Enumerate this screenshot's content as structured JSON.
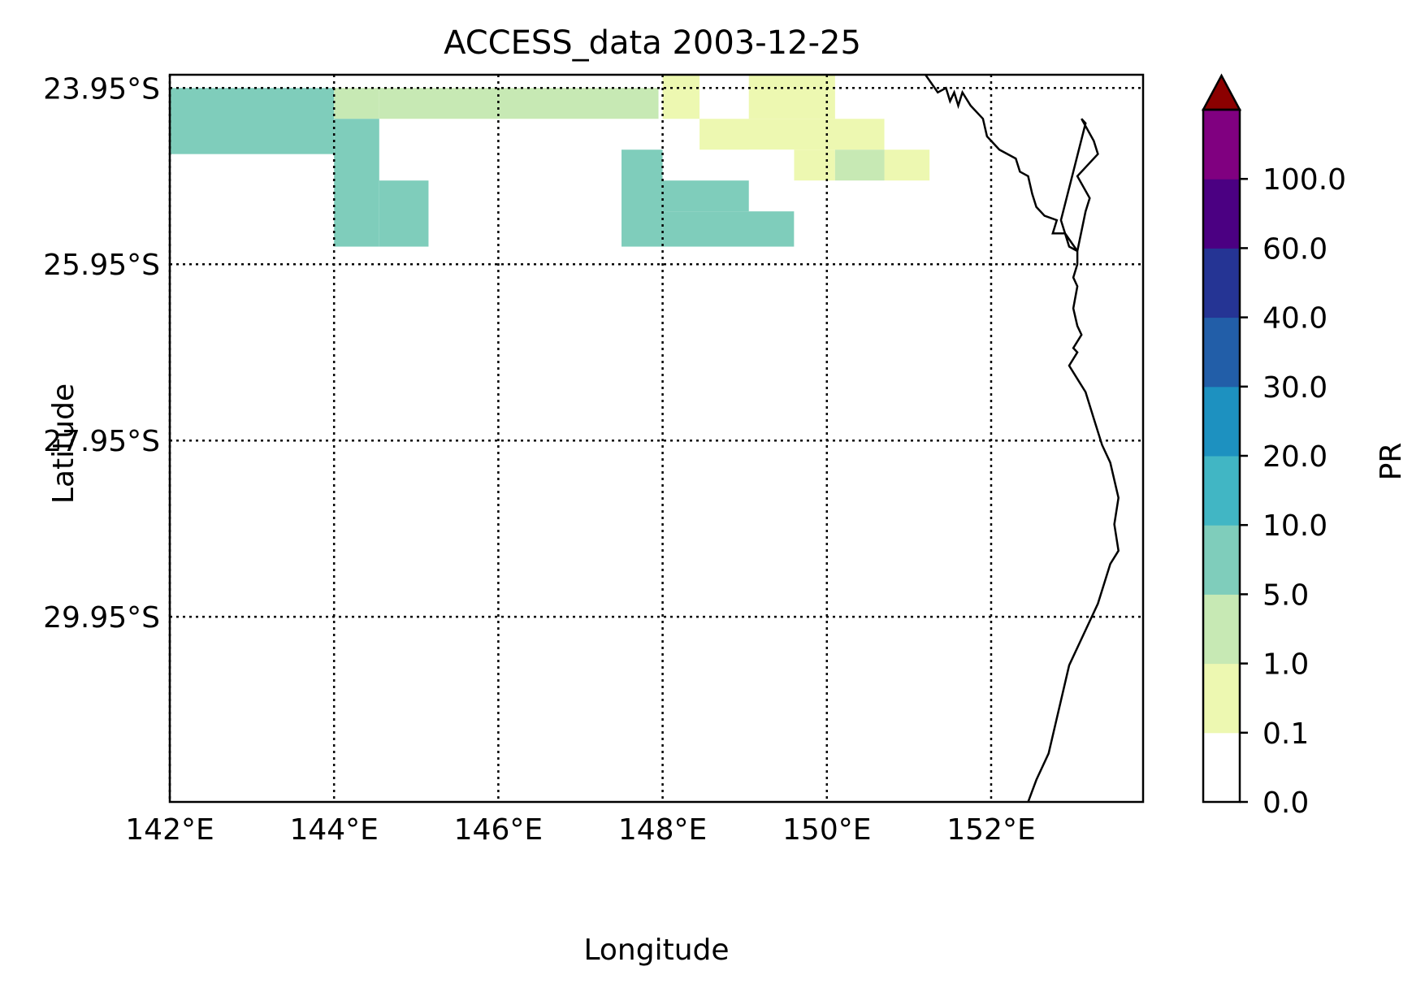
{
  "figure": {
    "title": "ACCESS_data 2003-12-25",
    "xlabel": "Longitude",
    "ylabel": "Latitude"
  },
  "map": {
    "lon_range": [
      142.0,
      153.85
    ],
    "lat_range": [
      -32.05,
      -23.8
    ],
    "lon_tick_labels": [
      "142°E",
      "144°E",
      "146°E",
      "148°E",
      "150°E",
      "152°E"
    ],
    "lon_ticks": [
      142,
      144,
      146,
      148,
      150,
      152
    ],
    "lat_tick_labels": [
      "23.95°S",
      "25.95°S",
      "27.95°S",
      "29.95°S"
    ],
    "lat_ticks": [
      -23.95,
      -25.95,
      -27.95,
      -29.95
    ],
    "gridlines": "dotted",
    "coastline": [
      [
        151.2,
        -23.8
      ],
      [
        151.35,
        -24.0
      ],
      [
        151.45,
        -23.95
      ],
      [
        151.5,
        -24.1
      ],
      [
        151.55,
        -24.0
      ],
      [
        151.6,
        -24.15
      ],
      [
        151.65,
        -24.0
      ],
      [
        151.75,
        -24.15
      ],
      [
        151.9,
        -24.3
      ],
      [
        151.95,
        -24.5
      ],
      [
        152.1,
        -24.65
      ],
      [
        152.3,
        -24.75
      ],
      [
        152.35,
        -24.9
      ],
      [
        152.45,
        -24.95
      ],
      [
        152.5,
        -25.15
      ],
      [
        152.55,
        -25.3
      ],
      [
        152.65,
        -25.4
      ],
      [
        152.8,
        -25.45
      ],
      [
        152.75,
        -25.6
      ],
      [
        152.9,
        -25.6
      ],
      [
        153.05,
        -25.8
      ],
      [
        153.15,
        -25.35
      ],
      [
        153.2,
        -25.2
      ],
      [
        153.05,
        -24.95
      ],
      [
        153.3,
        -24.7
      ],
      [
        153.25,
        -24.55
      ],
      [
        153.1,
        -24.3
      ],
      [
        153.15,
        -24.35
      ],
      [
        153.0,
        -24.9
      ],
      [
        152.85,
        -25.45
      ],
      [
        152.95,
        -25.75
      ],
      [
        153.05,
        -25.8
      ],
      [
        153.05,
        -25.95
      ],
      [
        153.0,
        -26.1
      ],
      [
        153.05,
        -26.2
      ],
      [
        153.0,
        -26.45
      ],
      [
        153.05,
        -26.65
      ],
      [
        153.1,
        -26.75
      ],
      [
        153.0,
        -26.9
      ],
      [
        153.05,
        -26.95
      ],
      [
        152.95,
        -27.1
      ],
      [
        153.05,
        -27.25
      ],
      [
        153.15,
        -27.4
      ],
      [
        153.25,
        -27.7
      ],
      [
        153.35,
        -28.0
      ],
      [
        153.45,
        -28.2
      ],
      [
        153.55,
        -28.6
      ],
      [
        153.5,
        -28.9
      ],
      [
        153.55,
        -29.2
      ],
      [
        153.45,
        -29.35
      ],
      [
        153.3,
        -29.8
      ],
      [
        153.2,
        -30.0
      ],
      [
        152.95,
        -30.5
      ],
      [
        152.85,
        -30.9
      ],
      [
        152.7,
        -31.5
      ],
      [
        152.55,
        -31.8
      ],
      [
        152.45,
        -32.05
      ]
    ]
  },
  "chart_data": {
    "type": "heatmap",
    "title": "ACCESS_data 2003-12-25",
    "xlabel": "Longitude",
    "ylabel": "Latitude",
    "colorbar_label": "PR",
    "xlim": [
      142.0,
      153.85
    ],
    "ylim": [
      -32.05,
      -23.8
    ],
    "cell_size_deg": [
      0.55,
      0.36
    ],
    "class_colors": [
      "#ffffff",
      "#edf8b1",
      "#c7e9b4",
      "#7fcdbb",
      "#41b6c4",
      "#1d91c0",
      "#225ea8",
      "#253494",
      "#4b0082",
      "#800080",
      "#8b0000"
    ],
    "cells": [
      {
        "lon": [
          142.0,
          144.0
        ],
        "lat": [
          -23.95,
          -24.7
        ],
        "cls": 3
      },
      {
        "lon": [
          144.0,
          144.55
        ],
        "lat": [
          -23.95,
          -24.3
        ],
        "cls": 2
      },
      {
        "lon": [
          144.55,
          147.95
        ],
        "lat": [
          -23.95,
          -24.3
        ],
        "cls": 2
      },
      {
        "lon": [
          148.0,
          148.45
        ],
        "lat": [
          -23.8,
          -24.3
        ],
        "cls": 1
      },
      {
        "lon": [
          148.45,
          149.05
        ],
        "lat": [
          -23.8,
          -24.3
        ],
        "cls": 0
      },
      {
        "lon": [
          149.05,
          150.1
        ],
        "lat": [
          -23.8,
          -24.3
        ],
        "cls": 1
      },
      {
        "lon": [
          148.45,
          150.7
        ],
        "lat": [
          -24.3,
          -24.65
        ],
        "cls": 1
      },
      {
        "lon": [
          149.6,
          150.1
        ],
        "lat": [
          -24.65,
          -25.0
        ],
        "cls": 1
      },
      {
        "lon": [
          150.7,
          151.25
        ],
        "lat": [
          -24.65,
          -25.0
        ],
        "cls": 1
      },
      {
        "lon": [
          150.1,
          150.7
        ],
        "lat": [
          -24.65,
          -25.0
        ],
        "cls": 2
      },
      {
        "lon": [
          149.05,
          149.6
        ],
        "lat": [
          -24.65,
          -25.0
        ],
        "cls": 0
      },
      {
        "lon": [
          144.0,
          144.55
        ],
        "lat": [
          -24.3,
          -25.75
        ],
        "cls": 3
      },
      {
        "lon": [
          144.55,
          145.15
        ],
        "lat": [
          -25.0,
          -25.75
        ],
        "cls": 3
      },
      {
        "lon": [
          147.5,
          148.0
        ],
        "lat": [
          -24.65,
          -25.75
        ],
        "cls": 3
      },
      {
        "lon": [
          148.0,
          149.05
        ],
        "lat": [
          -25.0,
          -25.35
        ],
        "cls": 3
      },
      {
        "lon": [
          148.0,
          149.6
        ],
        "lat": [
          -25.35,
          -25.75
        ],
        "cls": 3
      }
    ],
    "legend": {
      "type": "colorbar",
      "label": "PR",
      "tick_labels": [
        "0.0",
        "0.1",
        "1.0",
        "5.0",
        "10.0",
        "20.0",
        "30.0",
        "40.0",
        "60.0",
        "100.0"
      ],
      "boundaries": [
        0.0,
        0.1,
        1.0,
        5.0,
        10.0,
        20.0,
        30.0,
        40.0,
        60.0,
        100.0
      ],
      "top_class_color": "#800080",
      "extend": "max",
      "extend_color": "#8b0000",
      "placement": "right"
    }
  }
}
